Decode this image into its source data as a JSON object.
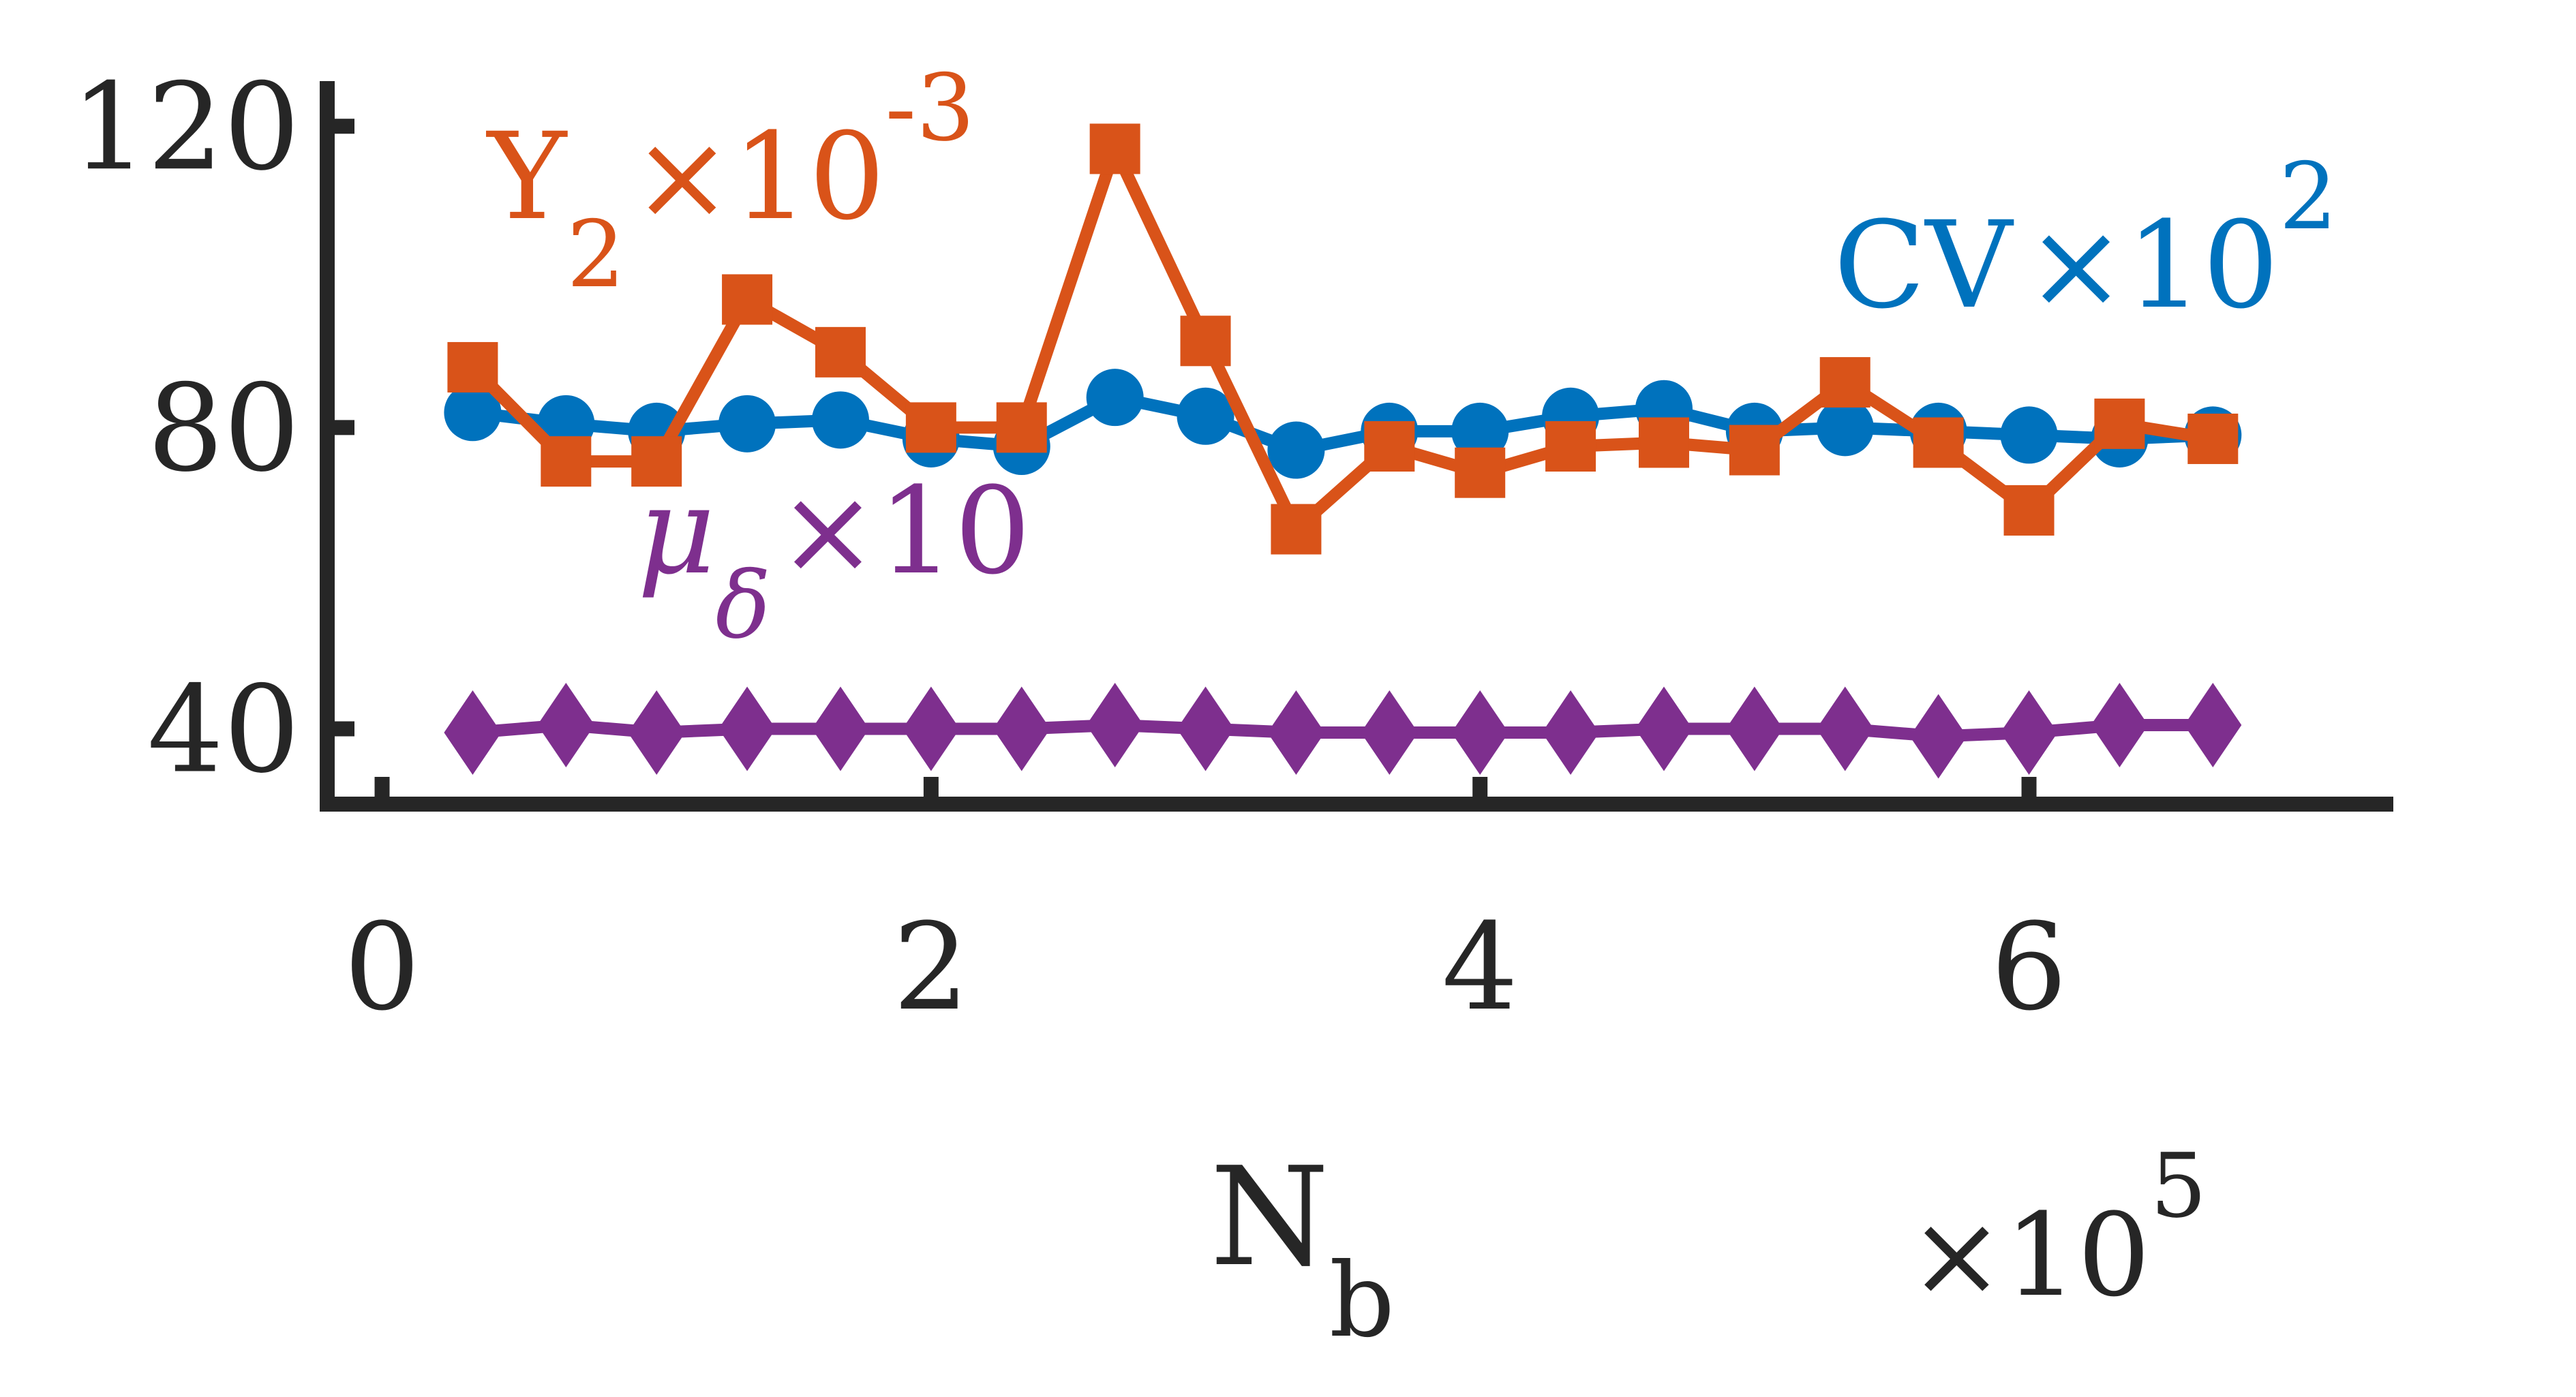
{
  "chart_data": {
    "type": "line",
    "xlabel": "N",
    "xlabel_sub": "b",
    "x_multiplier": {
      "base": "×10",
      "exponent": "5"
    },
    "xlim": [
      -0.2,
      7.3
    ],
    "ylim": [
      30,
      125
    ],
    "x_ticks": [
      0,
      2,
      4,
      6
    ],
    "x_tick_labels": [
      "0",
      "2",
      "4",
      "6"
    ],
    "y_ticks": [
      40,
      80,
      120
    ],
    "y_tick_labels": [
      "40",
      "80",
      "120"
    ],
    "grid": false,
    "series": [
      {
        "label_main": "CV",
        "label_mult": "×10",
        "label_exp": "2",
        "color": "#0072BD",
        "marker": "circle",
        "x": [
          0.33,
          0.67,
          1.0,
          1.33,
          1.67,
          2.0,
          2.33,
          2.67,
          3.0,
          3.33,
          3.67,
          4.0,
          4.33,
          4.67,
          5.0,
          5.33,
          5.67,
          6.0,
          6.33,
          6.67
        ],
        "values": [
          82.0,
          80.5,
          79.5,
          80.5,
          81.0,
          78.5,
          77.5,
          84.0,
          81.5,
          77.0,
          79.5,
          79.5,
          81.5,
          82.5,
          79.5,
          80.0,
          79.5,
          79.0,
          78.5,
          79.0
        ]
      },
      {
        "label_main": "Y",
        "label_sub": "2",
        "label_mult": "×10",
        "label_exp": "-3",
        "color": "#D95319",
        "marker": "square",
        "x": [
          0.33,
          0.67,
          1.0,
          1.33,
          1.67,
          2.0,
          2.33,
          2.67,
          3.0,
          3.33,
          3.67,
          4.0,
          4.33,
          4.67,
          5.0,
          5.33,
          5.67,
          6.0,
          6.33,
          6.67
        ],
        "values": [
          88.0,
          75.5,
          75.5,
          97.0,
          90.0,
          80.0,
          80.0,
          117.0,
          91.5,
          66.5,
          77.5,
          74.0,
          77.5,
          78.0,
          77.0,
          86.0,
          78.0,
          69.0,
          80.5,
          78.5
        ]
      },
      {
        "label_main": "μ",
        "label_sub": "δ",
        "label_mult": "×10",
        "color": "#7E2F8E",
        "marker": "diamond",
        "x": [
          0.33,
          0.67,
          1.0,
          1.33,
          1.67,
          2.0,
          2.33,
          2.67,
          3.0,
          3.33,
          3.67,
          4.0,
          4.33,
          4.67,
          5.0,
          5.33,
          5.67,
          6.0,
          6.33,
          6.67
        ],
        "values": [
          39.5,
          40.5,
          39.5,
          40.0,
          40.0,
          40.0,
          40.0,
          40.5,
          40.0,
          39.5,
          39.5,
          39.5,
          39.5,
          40.0,
          40.0,
          40.0,
          39.0,
          39.5,
          40.5,
          40.5
        ]
      }
    ]
  }
}
